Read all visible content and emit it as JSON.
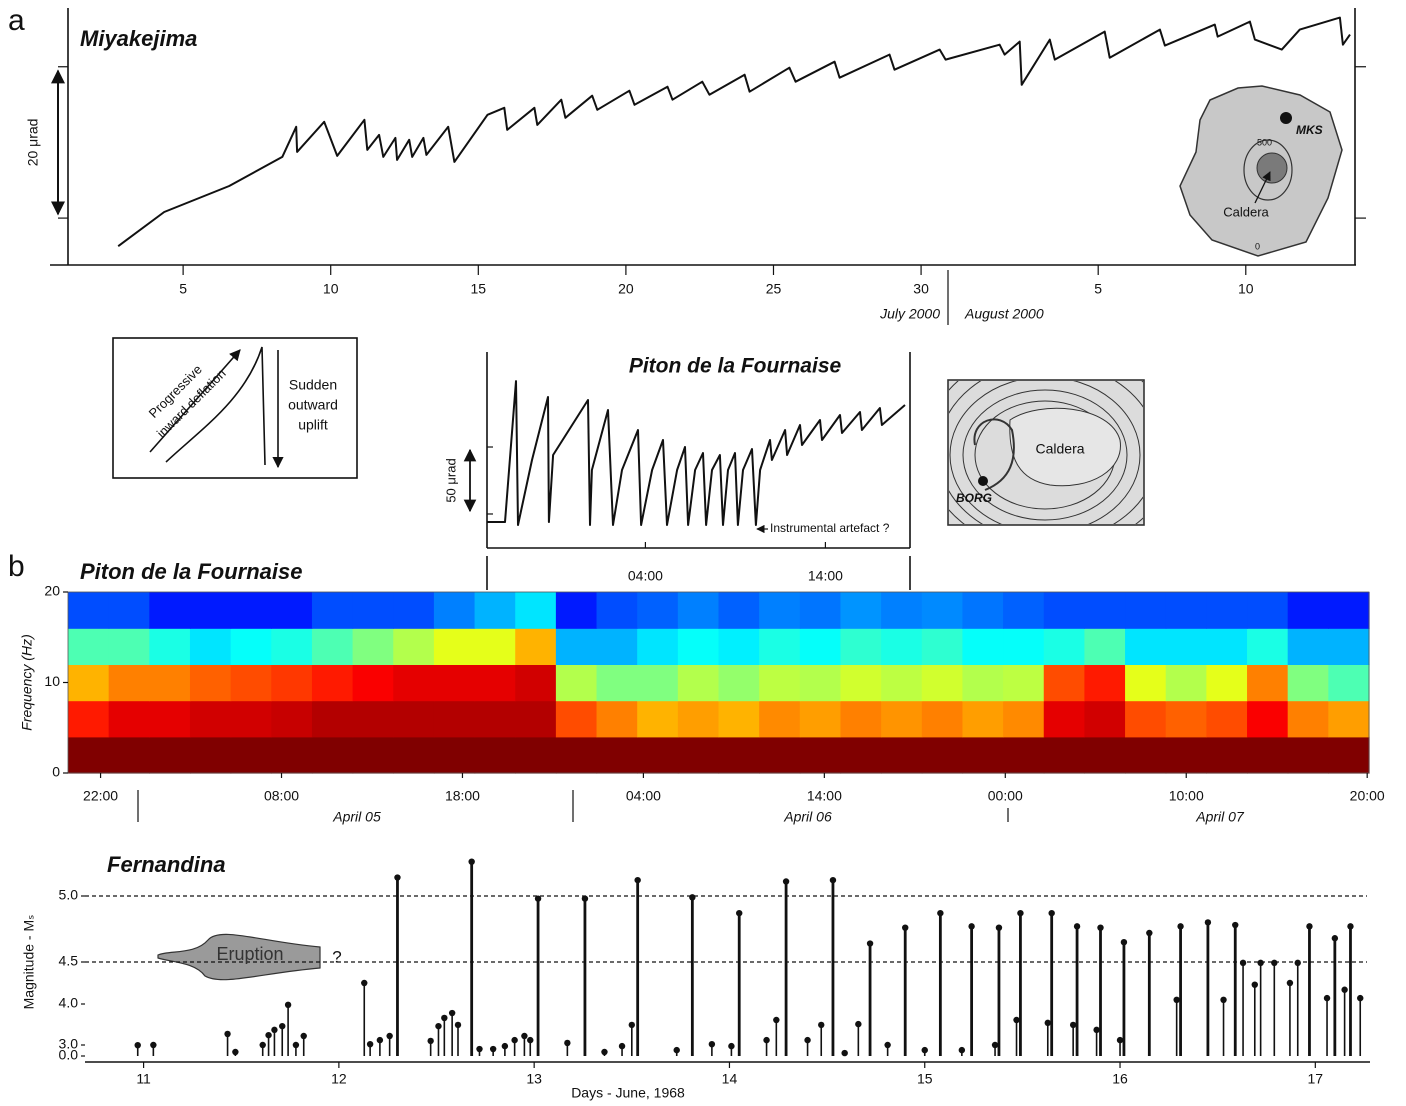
{
  "panel_labels": [
    "a",
    "b"
  ],
  "chart_data": [
    {
      "type": "line",
      "title": "Miyakejima",
      "x": [
        2.8,
        4.36,
        6.56,
        8.36,
        8.83,
        8.86,
        9.78,
        10.22,
        11.14,
        11.24,
        11.64,
        11.78,
        12.19,
        12.25,
        12.66,
        12.76,
        13.14,
        13.24,
        13.98,
        14.19,
        15.31,
        15.88,
        15.98,
        16.9,
        17.0,
        17.81,
        17.95,
        18.86,
        19.03,
        20.12,
        20.29,
        21.41,
        21.58,
        22.59,
        22.83,
        24.02,
        24.19,
        25.54,
        25.75,
        27.07,
        27.24,
        28.93,
        29.1,
        30.63,
        30.83,
        32.66,
        32.83,
        33.34,
        33.41,
        34.36,
        34.53,
        36.22,
        36.39,
        38.09,
        38.26,
        39.95,
        40.05,
        41.14,
        41.31,
        42.22,
        42.83,
        44.19,
        44.29,
        44.53
      ],
      "values": [
        -3.71,
        0.8,
        4.24,
        8.08,
        12.06,
        8.75,
        12.72,
        8.22,
        12.99,
        9.01,
        11.0,
        8.08,
        10.6,
        7.69,
        10.34,
        8.08,
        10.6,
        8.35,
        12.06,
        7.42,
        13.65,
        14.58,
        11.66,
        14.58,
        12.32,
        15.64,
        13.25,
        16.17,
        14.31,
        16.83,
        14.97,
        17.36,
        15.64,
        18.02,
        16.3,
        18.95,
        16.7,
        19.88,
        18.02,
        20.67,
        18.55,
        21.6,
        19.61,
        22.26,
        20.94,
        22.92,
        21.6,
        23.32,
        17.62,
        23.59,
        20.94,
        24.65,
        21.2,
        24.91,
        22.79,
        25.57,
        23.98,
        25.97,
        23.59,
        22.26,
        24.91,
        26.5,
        22.92,
        24.25
      ],
      "color": "#111111",
      "xlim": [
        1.1,
        44.7
      ],
      "xticks": [
        5,
        10,
        15,
        20,
        25,
        30,
        {
          "value": 36,
          "label": "5"
        },
        {
          "value": 41,
          "label": "10"
        }
      ],
      "ylim": [
        -6.2,
        27.5
      ],
      "yticks": [
        0,
        20
      ],
      "scale_label": "20 μrad",
      "month_labels": [
        "July 2000",
        "August 2000"
      ]
    },
    {
      "type": "line",
      "title": "Piton de la Fournaise",
      "x": [
        19.2,
        20.2,
        20.81,
        20.92,
        21.7,
        22.59,
        22.64,
        22.87,
        24.81,
        24.92,
        25.03,
        25.92,
        26.2,
        26.7,
        27.59,
        27.76,
        28.37,
        28.98,
        29.2,
        29.76,
        30.2,
        30.37,
        30.76,
        31.2,
        31.37,
        31.7,
        32.14,
        32.31,
        32.59,
        32.98,
        33.14,
        33.42,
        33.92,
        34.14,
        34.37,
        34.92,
        35.03,
        35.76,
        35.87,
        36.59,
        36.7,
        37.7,
        37.81,
        38.81,
        38.92,
        39.92,
        40.03,
        41.03,
        41.14,
        42.42
      ],
      "values": [
        -5.97,
        -5.97,
        99.25,
        -8.21,
        40.3,
        87.31,
        -5.97,
        44.03,
        85.07,
        -8.21,
        32.84,
        77.61,
        -8.21,
        32.84,
        62.69,
        -8.21,
        32.84,
        55.22,
        -8.21,
        32.84,
        50.0,
        -8.21,
        32.84,
        45.52,
        -8.21,
        32.84,
        44.03,
        -8.21,
        32.84,
        45.52,
        -8.21,
        32.84,
        48.51,
        -8.21,
        32.84,
        55.22,
        40.3,
        62.69,
        44.03,
        66.42,
        51.49,
        70.15,
        55.22,
        73.88,
        60.45,
        76.12,
        62.69,
        79.1,
        66.42,
        81.34
      ],
      "color": "#111111",
      "xlim": [
        19.2,
        42.7
      ],
      "xticks": [
        {
          "value": 28,
          "label": "04:00"
        },
        {
          "value": 38,
          "label": "14:00"
        }
      ],
      "ylim": [
        -25.4,
        118.7
      ],
      "yticks": [
        0,
        50
      ],
      "scale_label": "50 μrad",
      "annotation": "Instrumental artefact ?"
    },
    {
      "type": "heatmap",
      "title": "Piton de la Fournaise",
      "ylabel": "Frequency (Hz)",
      "xlim": [
        -3.8,
        68.1
      ],
      "ylim": [
        0,
        20
      ],
      "yticks": [
        0,
        10,
        20
      ],
      "xticks": [
        {
          "value": -2,
          "label": "22:00"
        },
        {
          "value": 8,
          "label": "08:00"
        },
        {
          "value": 18,
          "label": "18:00"
        },
        {
          "value": 28,
          "label": "04:00"
        },
        {
          "value": 38,
          "label": "14:00"
        },
        {
          "value": 48,
          "label": "00:00"
        },
        {
          "value": 58,
          "label": "10:00"
        },
        {
          "value": 68,
          "label": "20:00"
        }
      ],
      "date_labels": [
        "April 05",
        "April 06",
        "April 07"
      ],
      "colormap": "jet",
      "z": [
        [
          1,
          1,
          1,
          1,
          1,
          1,
          1,
          1,
          1,
          1,
          1,
          1,
          1,
          1,
          1,
          1,
          1,
          1,
          1,
          1,
          1,
          1,
          1,
          1,
          1,
          1,
          1,
          1,
          1,
          1,
          1,
          1
        ],
        [
          0.85,
          0.9,
          0.9,
          0.92,
          0.92,
          0.93,
          0.95,
          0.95,
          0.95,
          0.95,
          0.95,
          0.95,
          0.8,
          0.75,
          0.7,
          0.72,
          0.7,
          0.74,
          0.72,
          0.75,
          0.73,
          0.75,
          0.72,
          0.74,
          0.9,
          0.92,
          0.8,
          0.78,
          0.8,
          0.88,
          0.75,
          0.72
        ],
        [
          0.7,
          0.75,
          0.75,
          0.78,
          0.8,
          0.82,
          0.85,
          0.88,
          0.9,
          0.9,
          0.9,
          0.92,
          0.55,
          0.5,
          0.5,
          0.55,
          0.52,
          0.56,
          0.55,
          0.58,
          0.56,
          0.58,
          0.55,
          0.56,
          0.8,
          0.85,
          0.6,
          0.55,
          0.6,
          0.75,
          0.5,
          0.45
        ],
        [
          0.45,
          0.45,
          0.4,
          0.35,
          0.38,
          0.4,
          0.45,
          0.5,
          0.55,
          0.6,
          0.6,
          0.7,
          0.3,
          0.3,
          0.35,
          0.38,
          0.36,
          0.4,
          0.38,
          0.42,
          0.4,
          0.42,
          0.38,
          0.38,
          0.4,
          0.45,
          0.35,
          0.35,
          0.35,
          0.4,
          0.3,
          0.3
        ],
        [
          0.2,
          0.2,
          0.15,
          0.15,
          0.15,
          0.15,
          0.2,
          0.2,
          0.2,
          0.25,
          0.3,
          0.35,
          0.15,
          0.2,
          0.22,
          0.25,
          0.22,
          0.25,
          0.24,
          0.27,
          0.25,
          0.26,
          0.24,
          0.22,
          0.2,
          0.2,
          0.2,
          0.2,
          0.2,
          0.2,
          0.15,
          0.15
        ]
      ]
    },
    {
      "type": "stem",
      "title": "Fernandina",
      "ylabel": "Magnitude - Mₛ",
      "xlabel": "Days - June, 1968",
      "x": [
        10.97,
        11.05,
        11.43,
        11.47,
        11.61,
        11.64,
        11.67,
        11.71,
        11.74,
        11.78,
        11.82,
        12.13,
        12.16,
        12.21,
        12.26,
        12.3,
        12.47,
        12.51,
        12.54,
        12.58,
        12.61,
        12.68,
        12.72,
        12.79,
        12.85,
        12.9,
        12.95,
        12.98,
        13.02,
        13.17,
        13.26,
        13.36,
        13.45,
        13.5,
        13.53,
        13.73,
        13.81,
        13.91,
        14.01,
        14.05,
        14.19,
        14.24,
        14.29,
        14.4,
        14.47,
        14.53,
        14.59,
        14.66,
        14.72,
        14.81,
        14.9,
        15.0,
        15.08,
        15.19,
        15.24,
        15.36,
        15.38,
        15.47,
        15.49,
        15.63,
        15.65,
        15.76,
        15.78,
        15.88,
        15.9,
        16.0,
        16.02,
        16.15,
        16.29,
        16.31,
        16.45,
        16.53,
        16.59,
        16.63,
        16.69,
        16.72,
        16.79,
        16.87,
        16.91,
        16.97,
        17.06,
        17.1,
        17.15,
        17.18,
        17.23
      ],
      "values": [
        2.95,
        3.0,
        3.27,
        1.1,
        3.0,
        3.24,
        3.37,
        3.46,
        3.98,
        3.0,
        3.22,
        4.25,
        3.02,
        3.12,
        3.22,
        5.14,
        3.1,
        3.46,
        3.66,
        3.78,
        3.49,
        5.26,
        1.9,
        1.9,
        2.7,
        3.12,
        3.22,
        3.12,
        4.98,
        3.05,
        4.98,
        1.1,
        2.7,
        3.49,
        5.12,
        1.6,
        4.99,
        3.02,
        2.7,
        4.87,
        3.12,
        3.61,
        5.11,
        3.12,
        3.49,
        5.12,
        0.8,
        3.51,
        4.64,
        3.0,
        4.76,
        1.6,
        4.87,
        1.6,
        4.77,
        3.0,
        4.76,
        3.61,
        4.87,
        3.54,
        4.87,
        3.49,
        4.77,
        3.37,
        4.76,
        3.12,
        4.65,
        4.72,
        4.05,
        4.77,
        4.8,
        4.05,
        4.78,
        4.49,
        4.23,
        4.49,
        4.49,
        4.25,
        4.49,
        4.77,
        4.07,
        4.68,
        4.17,
        4.77,
        4.07
      ],
      "color": "#111111",
      "xlim": [
        10.7,
        17.28
      ],
      "xticks": [
        11,
        12,
        13,
        14,
        15,
        16,
        17
      ],
      "yticks": [
        {
          "value": 0,
          "label": "0.0"
        },
        {
          "value": 3,
          "label": "3.0"
        },
        {
          "value": 4,
          "label": "4.0"
        },
        4.5,
        {
          "value": 5,
          "label": "5.0"
        }
      ],
      "reference_lines": [
        5,
        4.5
      ],
      "annotation": "Eruption",
      "annotation_mark": "?"
    }
  ],
  "diagrams": {
    "legend": {
      "deflation": [
        "Progressive",
        "inward deflation"
      ],
      "uplift": [
        "Sudden",
        "outward",
        "uplift"
      ]
    },
    "miyakejima_map": {
      "station": "MKS",
      "contour_500": "500",
      "caldera": "Caldera",
      "contour_0": "0"
    },
    "piton_map": {
      "caldera": "Caldera",
      "station": "BORG"
    }
  }
}
